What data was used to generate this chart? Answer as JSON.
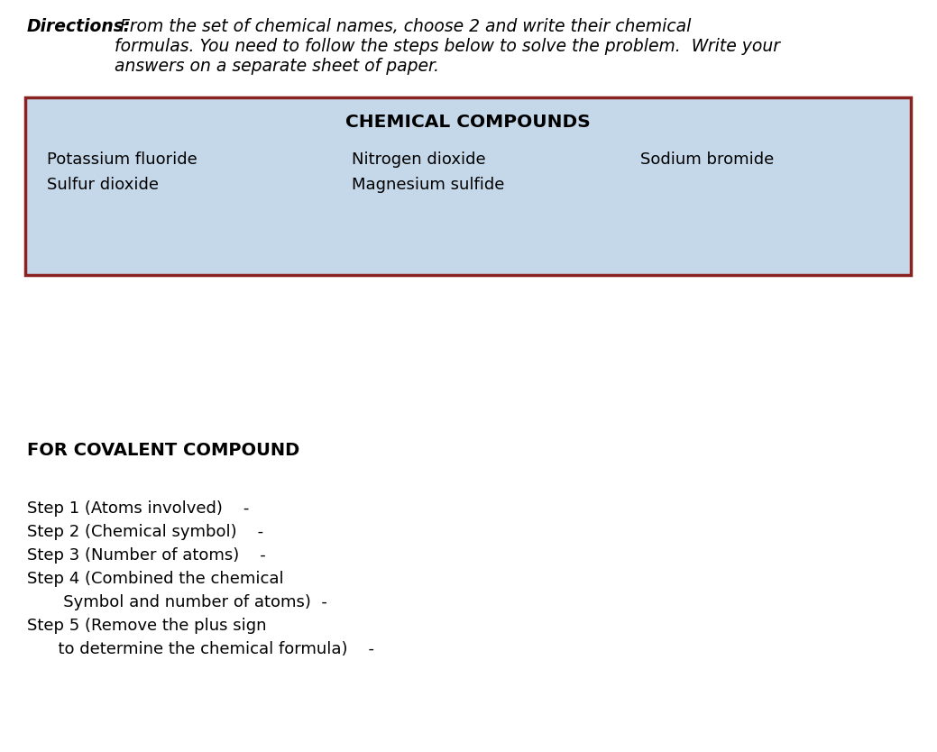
{
  "directions_bold": "Directions:",
  "directions_rest": " From the set of chemical names, choose 2 and write their chemical\nformulas. You need to follow the steps below to solve the problem.  Write your\nanswers on a separate sheet of paper.",
  "box_title": "CHEMICAL COMPOUNDS",
  "box_bg_color": "#c5d8ea",
  "box_border_color": "#8b2222",
  "col1_items": [
    "Potassium fluoride",
    "Sulfur dioxide"
  ],
  "col2_items": [
    "Nitrogen dioxide",
    "Magnesium sulfide"
  ],
  "col3_items": [
    "Sodium bromide"
  ],
  "for_covalent_header": "FOR COVALENT COMPOUND",
  "step1": "Step 1 (Atoms involved)    -",
  "step2": "Step 2 (Chemical symbol)    -",
  "step3": "Step 3 (Number of atoms)    -",
  "step4a": "Step 4 (Combined the chemical",
  "step4b": "       Symbol and number of atoms)  -",
  "step5a": "Step 5 (Remove the plus sign",
  "step5b": "      to determine the chemical formula)    -",
  "bg_color": "#ffffff",
  "text_color": "#000000",
  "font_size_directions": 13.5,
  "font_size_box_title": 14.5,
  "font_size_items": 13.0,
  "font_size_header": 14.0,
  "font_size_steps": 13.0
}
